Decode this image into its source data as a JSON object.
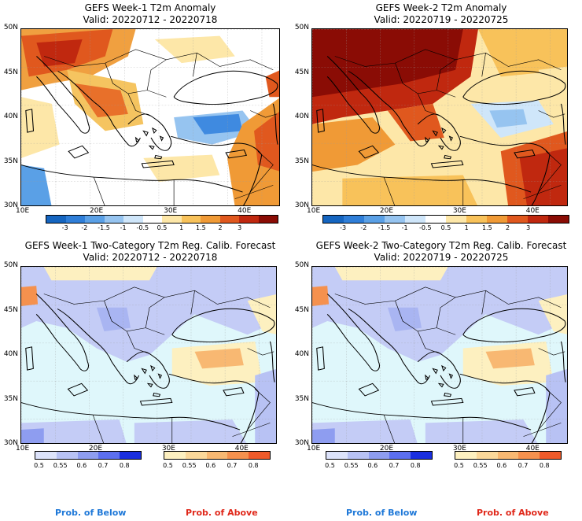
{
  "panels": [
    {
      "id": "tl",
      "title": "GEFS Week-1 T2m Anomaly",
      "valid": "Valid: 20220712 - 20220718"
    },
    {
      "id": "tr",
      "title": "GEFS Week-2 T2m Anomaly",
      "valid": "Valid: 20220719 - 20220725"
    },
    {
      "id": "bl",
      "title": "GEFS Week-1 Two-Category T2m Reg. Calib. Forecast",
      "valid": "Valid: 20220712 - 20220718"
    },
    {
      "id": "br",
      "title": "GEFS Week-2 Two-Category T2m Reg. Calib. Forecast",
      "valid": "Valid: 20220719 - 20220725"
    }
  ],
  "lat_labels": [
    "50N",
    "45N",
    "40N",
    "35N",
    "30N"
  ],
  "lon_labels": [
    "10E",
    "20E",
    "30E",
    "40E"
  ],
  "anomaly_scale": {
    "labels": [
      "-3",
      "-2",
      "-1.5",
      "-1",
      "-0.5",
      "0.5",
      "1",
      "1.5",
      "2",
      "3"
    ],
    "colors": [
      "#1565c0",
      "#2f7ed8",
      "#5aa0e6",
      "#96c4f0",
      "#cfe6fa",
      "#ffffff",
      "#fde7a8",
      "#f8c25a",
      "#f09a36",
      "#e0581e",
      "#c0280f",
      "#8a0c05"
    ]
  },
  "prob_scale": {
    "below_labels": [
      "0.5",
      "0.55",
      "0.6",
      "0.7",
      "0.8"
    ],
    "above_labels": [
      "0.5",
      "0.55",
      "0.6",
      "0.7",
      "0.8"
    ],
    "below_colors": [
      "#dde3fb",
      "#b8c2f4",
      "#8e9df0",
      "#5c6ff0",
      "#1a2fe0"
    ],
    "above_colors": [
      "#fdf0c0",
      "#fbd89a",
      "#f8b872",
      "#f5914e",
      "#ee5a2a"
    ],
    "below_text": "Prob. of Below",
    "above_text": "Prob. of Above",
    "below_color": "#1e78d8",
    "above_color": "#e0281a"
  }
}
